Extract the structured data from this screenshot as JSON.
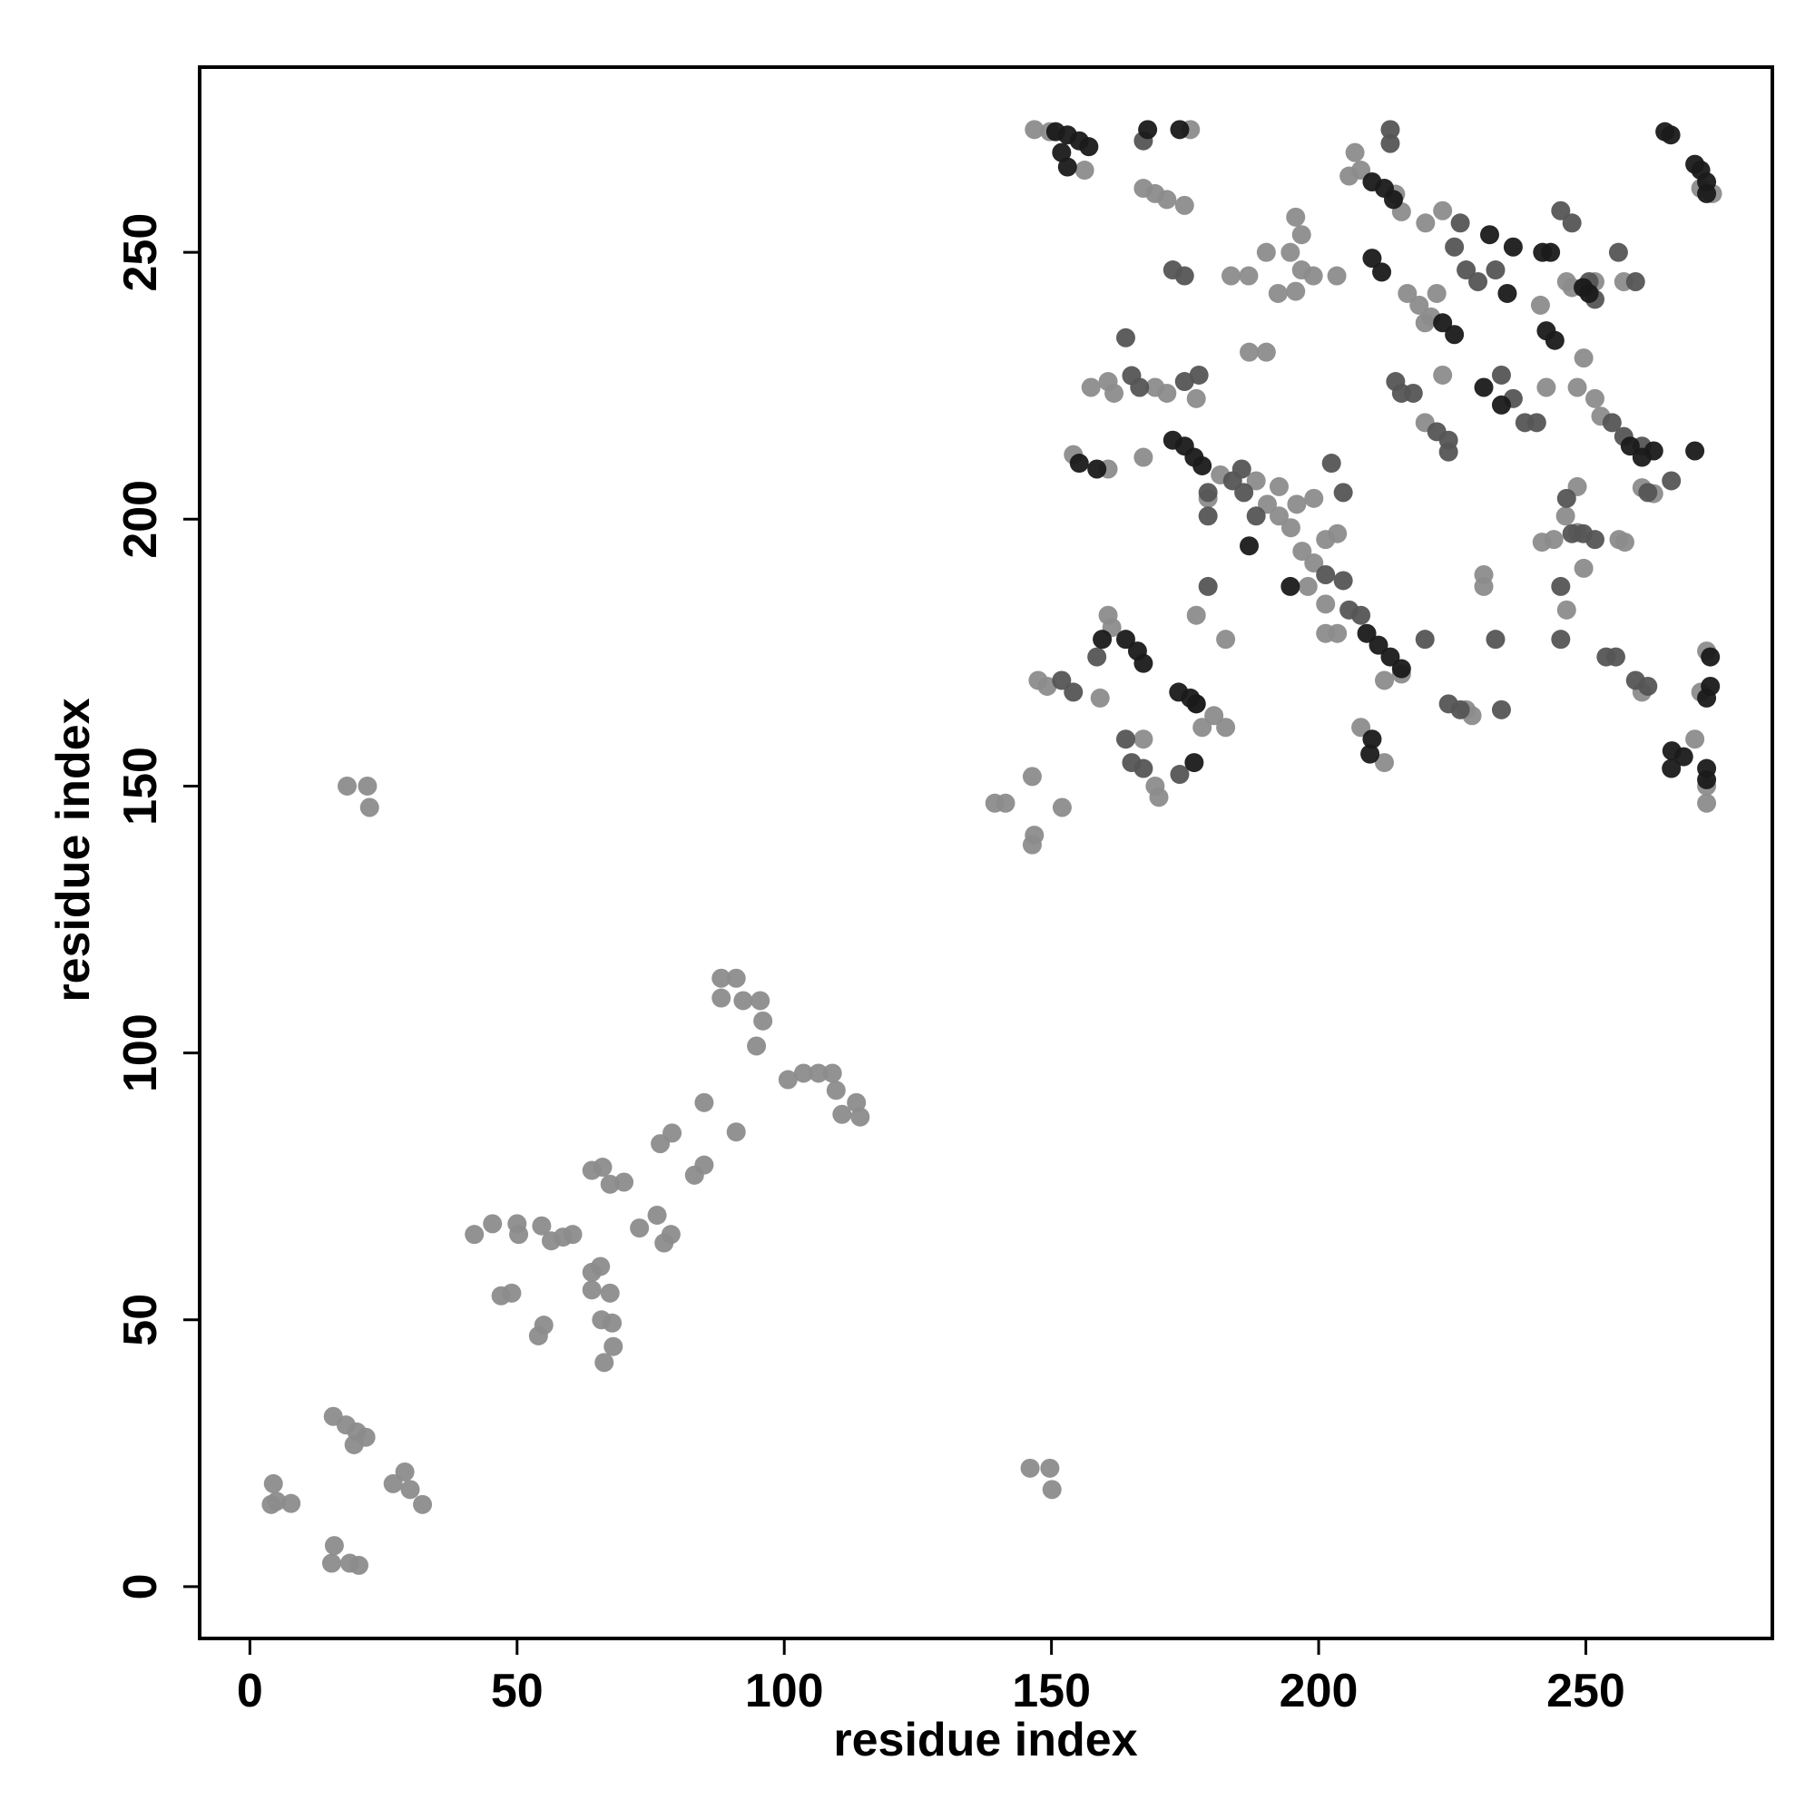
{
  "chart_data": {
    "type": "scatter",
    "x_label": "residue index",
    "y_label": "residue index",
    "xlim": [
      -9.4,
      284.9
    ],
    "ylim": [
      -9.7,
      284.7
    ],
    "xticks": [
      0,
      50,
      100,
      150,
      200,
      250
    ],
    "yticks": [
      0,
      50,
      100,
      150,
      200,
      250
    ],
    "series": [
      {
        "color": "#8c8c8c",
        "x": [
          4.4,
          5,
          7.7,
          4,
          15.6,
          18,
          20,
          21.7,
          19.5,
          15.8,
          15.3,
          18.7,
          20.4,
          26.8,
          29,
          30,
          32.3,
          18.2,
          22,
          22.4,
          42,
          45.4,
          50,
          50.3,
          47,
          49,
          54,
          55,
          54.6,
          56.4,
          58.6,
          60.4,
          64,
          66,
          67.4,
          70,
          64,
          65.6,
          64,
          67.4,
          65.8,
          67.8,
          66.3,
          68,
          72.9,
          76.2,
          77.5,
          78.8,
          76.8,
          79,
          83.2,
          85,
          85,
          91,
          88.2,
          91,
          88.2,
          92.3,
          95.5,
          96,
          94.8,
          100.7,
          103.6,
          106.4,
          109,
          109.7,
          110.8,
          113.5,
          114.2,
          139.4,
          141.4,
          146.4,
          146.8,
          146.4,
          152,
          146,
          149.7,
          150.1,
          146.8,
          149.7,
          156.2,
          176,
          167.2,
          169.4,
          171.6,
          174.9,
          195.7,
          196.8,
          194.7,
          196.8,
          195.7,
          192.4,
          183.6,
          186.9,
          199,
          203.4,
          190.2,
          187,
          190.2,
          205.7,
          206.8,
          207.9,
          220,
          223.2,
          216.6,
          218.8,
          221,
          222.1,
          219.9,
          248.4,
          251.7,
          257.1,
          251.7,
          252.8,
          242.6,
          241.5,
          260.5,
          262.7,
          219.9,
          160.6,
          154.1,
          157.4,
          160.6,
          161.7,
          169.4,
          171.6,
          177.1,
          167.2,
          181.6,
          188.3,
          190.4,
          192.6,
          195.9,
          199.1,
          192.6,
          179.3,
          194.8,
          196.9,
          201.3,
          203.5,
          199.1,
          198,
          201.3,
          201.3,
          203.5,
          248.4,
          246.2,
          244,
          241.8,
          248.4,
          249.6,
          256.2,
          257.3,
          246.4,
          230.9,
          230.9,
          214.4,
          215.5,
          272.6,
          272.6,
          272.6,
          271.5,
          270.4,
          260.5,
          215.5,
          212.3,
          212.3,
          207.9,
          227.6,
          228.7,
          147.5,
          149.2,
          160.6,
          161.3,
          159.1,
          167.2,
          169.4,
          170.1,
          178.2,
          180.4,
          182.6,
          177.1,
          182.6,
          177.1,
          246.4,
          247.4,
          249.6,
          271.5,
          273.7,
          223.2
        ],
        "values": [
          19.3,
          16,
          15.6,
          15.4,
          31.9,
          30.3,
          29,
          28,
          26.6,
          7.7,
          4.4,
          4.4,
          4,
          19.3,
          21.5,
          18.2,
          15.4,
          150,
          150,
          146,
          66,
          68,
          68,
          66,
          54.5,
          55,
          47,
          49,
          67.6,
          64.8,
          65.5,
          66,
          78,
          78.6,
          75.4,
          75.8,
          58.9,
          60,
          55.6,
          55,
          50,
          49.4,
          42,
          45,
          67.2,
          69.6,
          64.4,
          66,
          83,
          85,
          77.1,
          79,
          90.7,
          85.2,
          114,
          114,
          110.3,
          109.8,
          109.8,
          106,
          101.3,
          95,
          96.2,
          96.2,
          96.2,
          93,
          88.5,
          90.7,
          88,
          146.8,
          146.8,
          151.8,
          140.8,
          139,
          146,
          22.2,
          22.2,
          18.2,
          273,
          272.6,
          265.4,
          273,
          262,
          261,
          259.9,
          258.8,
          256.6,
          253.3,
          250,
          246.7,
          242.7,
          242.3,
          245.6,
          245.6,
          245.6,
          245.6,
          250,
          231.3,
          231.3,
          264.3,
          268.7,
          265.4,
          255.5,
          257.8,
          242.3,
          240.1,
          237.9,
          242.3,
          236.8,
          224.7,
          244.5,
          244.5,
          222.6,
          219.3,
          224.7,
          240.1,
          205.9,
          204.8,
          218.1,
          209.4,
          212.1,
          224.7,
          225.8,
          223.6,
          224.7,
          223.6,
          222.6,
          211.6,
          208.3,
          207.2,
          202.8,
          200.6,
          202.8,
          203.9,
          206.1,
          203.9,
          198.4,
          194,
          196.2,
          197.3,
          191.8,
          187.4,
          184.1,
          178.6,
          178.6,
          206.1,
          200.6,
          196.2,
          195.7,
          197.5,
          190.8,
          196.2,
          195.7,
          183,
          189.6,
          187.4,
          260.9,
          257.6,
          150,
          146.8,
          175.3,
          167.6,
          158.8,
          167.6,
          171,
          169.8,
          154.4,
          161,
          164.3,
          163.2,
          169.8,
          168.7,
          182,
          179.7,
          166.5,
          158.8,
          150,
          147.9,
          161,
          163.2,
          161,
          182,
          177.5,
          165.4,
          244.5,
          243.4,
          230.2,
          262,
          261,
          227
        ]
      },
      {
        "color": "#555555",
        "x": [
          172.7,
          174.9,
          163.9,
          165,
          166.5,
          174.9,
          177.6,
          214.4,
          215.5,
          217.7,
          222.1,
          224.3,
          224.3,
          254.9,
          257.1,
          260.5,
          253.8,
          255.6,
          259.3,
          261.6,
          226.5,
          225.4,
          227.6,
          229.8,
          233.1,
          234.2,
          236.4,
          238.6,
          240.8,
          185.6,
          183.9,
          186,
          188.3,
          201.3,
          204.6,
          205.7,
          207.9,
          158.5,
          154.1,
          151.9,
          224.3,
          226.5,
          234.2,
          233.1,
          247.4,
          249.5,
          251.7,
          219.9,
          163.9,
          165,
          167.2,
          174,
          213.4,
          213.4,
          167.2,
          245.3,
          247.4,
          250.6,
          202.4,
          204.6,
          179.3,
          179.3,
          179.3,
          246.4,
          245.3,
          245.3,
          251.7,
          256.1,
          259.3,
          261.6,
          266
        ],
        "values": [
          246.7,
          245.6,
          234,
          226.9,
          224.7,
          225.8,
          227,
          225.8,
          223.6,
          223.6,
          216.4,
          214.8,
          212.6,
          218.1,
          215.5,
          213.7,
          174.2,
          174.2,
          169.8,
          168.7,
          255.5,
          251,
          246.7,
          244.5,
          246.7,
          227,
          222.6,
          218.1,
          218.1,
          209.4,
          207.2,
          205,
          200.6,
          189.6,
          188.5,
          183,
          182,
          174.2,
          167.6,
          169.8,
          165.4,
          164.3,
          164.3,
          177.5,
          197.3,
          197.3,
          196.2,
          177.5,
          158.8,
          154.4,
          153.3,
          152.2,
          270.4,
          273,
          270.9,
          257.8,
          255.5,
          244.5,
          210.5,
          205,
          205,
          200.6,
          187.4,
          203.9,
          187.4,
          177.5,
          241.2,
          250,
          244.5,
          205,
          207.2
        ]
      },
      {
        "color": "#1a1a1a",
        "x": [
          150.8,
          153,
          155.2,
          157,
          168,
          174,
          264.8,
          265.9,
          271.5,
          272.6,
          272.6,
          210,
          212.3,
          214,
          232,
          236.4,
          241.9,
          243.4,
          249.5,
          250.6,
          235.3,
          242.6,
          244.2,
          172.7,
          174.9,
          176.7,
          178.2,
          258.3,
          260.5,
          262.7,
          270.4,
          163.9,
          159.5,
          166.1,
          167.2,
          173.8,
          176,
          177.1,
          209,
          211.2,
          213.4,
          215.5,
          266.1,
          268.3,
          272.6,
          272.6,
          273.3,
          273.3,
          230.9,
          234.2,
          223.2,
          225.4,
          210,
          211.8,
          155.2,
          158.5,
          210,
          209.6,
          272.6,
          266,
          187,
          194.7,
          176.7,
          270.4,
          151.9,
          153
        ],
        "values": [
          272.6,
          272,
          270.9,
          269.8,
          273,
          273,
          272.6,
          272,
          265.4,
          263.2,
          261,
          263.2,
          262,
          259.9,
          253.3,
          251,
          250,
          250,
          243.4,
          242.3,
          242.3,
          235.3,
          233.5,
          214.8,
          213.7,
          211.6,
          210,
          213.7,
          211.6,
          212.8,
          212.8,
          177.5,
          177.5,
          175.3,
          173,
          167.6,
          166.5,
          165.4,
          178.6,
          176.4,
          174.2,
          172,
          156.6,
          155.5,
          153.3,
          151.2,
          174.2,
          168.7,
          224.7,
          221.4,
          236.8,
          234.6,
          248.9,
          246.3,
          210.5,
          209.4,
          158.8,
          156,
          166.5,
          153.3,
          195,
          187.4,
          154.4,
          266.5,
          268.7,
          266
        ]
      }
    ]
  }
}
